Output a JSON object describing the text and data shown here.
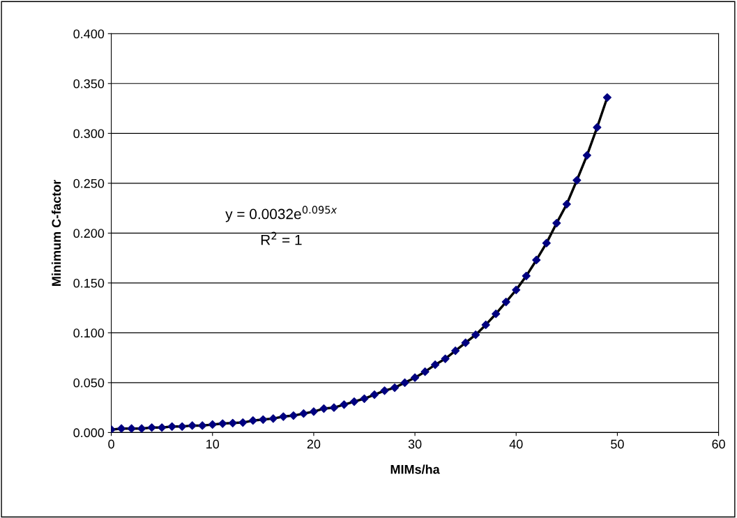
{
  "chart_data": {
    "type": "scatter",
    "xlabel": "MIMs/ha",
    "ylabel": "Minimum C-factor",
    "x": [
      0,
      1,
      2,
      3,
      4,
      5,
      6,
      7,
      8,
      9,
      10,
      11,
      12,
      13,
      14,
      15,
      16,
      17,
      18,
      19,
      20,
      21,
      22,
      23,
      24,
      25,
      26,
      27,
      28,
      29,
      30,
      31,
      32,
      33,
      34,
      35,
      36,
      37,
      38,
      39,
      40,
      41,
      42,
      43,
      44,
      45,
      46,
      47,
      48,
      49
    ],
    "series": [
      {
        "type": "line",
        "color": "#000000",
        "marker": "none",
        "x": [
          0,
          1,
          2,
          3,
          4,
          5,
          6,
          7,
          8,
          9,
          10,
          11,
          12,
          13,
          14,
          15,
          16,
          17,
          18,
          19,
          20,
          21,
          22,
          23,
          24,
          25,
          26,
          27,
          28,
          29,
          30,
          31,
          32,
          33,
          34,
          35,
          36,
          37,
          38,
          39,
          40,
          41,
          42,
          43,
          44,
          45,
          46,
          47,
          48,
          49
        ],
        "values": [
          0.003,
          0.004,
          0.004,
          0.004,
          0.005,
          0.005,
          0.006,
          0.006,
          0.007,
          0.007,
          0.008,
          0.009,
          0.0095,
          0.01,
          0.012,
          0.013,
          0.014,
          0.016,
          0.017,
          0.019,
          0.021,
          0.024,
          0.025,
          0.028,
          0.031,
          0.034,
          0.038,
          0.042,
          0.045,
          0.05,
          0.055,
          0.061,
          0.068,
          0.074,
          0.082,
          0.09,
          0.098,
          0.108,
          0.119,
          0.131,
          0.143,
          0.157,
          0.173,
          0.19,
          0.21,
          0.229,
          0.253,
          0.278,
          0.306,
          0.336
        ]
      },
      {
        "color": "#000080",
        "values": [
          0.003,
          0.004,
          0.004,
          0.004,
          0.005,
          0.005,
          0.006,
          0.006,
          0.007,
          0.007,
          0.008,
          0.009,
          0.0095,
          0.01,
          0.012,
          0.013,
          0.014,
          0.016,
          0.017,
          0.019,
          0.021,
          0.024,
          0.025,
          0.028,
          0.031,
          0.034,
          0.038,
          0.042,
          0.045,
          0.05,
          0.055,
          0.061,
          0.068,
          0.074,
          0.082,
          0.09,
          0.098,
          0.108,
          0.119,
          0.131,
          0.143,
          0.157,
          0.173,
          0.19,
          0.21,
          0.229,
          0.253,
          0.278,
          0.306,
          0.336
        ]
      }
    ],
    "annotations": [
      "y = 0.0032e$^{0.095x}$",
      "R$^{2}$ = 1"
    ],
    "xlim": [
      0,
      60
    ],
    "xticks": [
      0,
      10,
      20,
      30,
      40,
      50,
      60
    ],
    "ylim": [
      0,
      0.4
    ],
    "yticks": [
      {
        "value": 0,
        "label": "0.000"
      },
      {
        "value": 0.05,
        "label": "0.050"
      },
      {
        "value": 0.1,
        "label": "0.100"
      },
      {
        "value": 0.15,
        "label": "0.150"
      },
      {
        "value": 0.2,
        "label": "0.200"
      },
      {
        "value": 0.25,
        "label": "0.250"
      },
      {
        "value": 0.3,
        "label": "0.300"
      },
      {
        "value": 0.35,
        "label": "0.350"
      },
      {
        "value": 0.4,
        "label": "0.400"
      }
    ],
    "grid": "y",
    "marker": "diamond",
    "line_style": "solid",
    "legend": false
  }
}
